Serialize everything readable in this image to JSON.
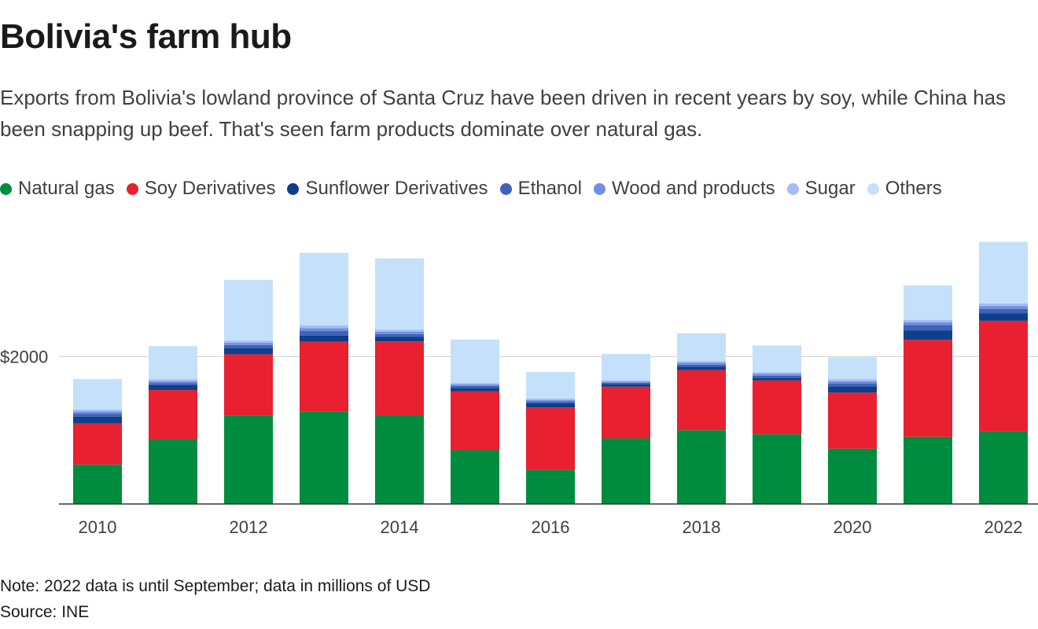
{
  "title": "Bolivia's farm hub",
  "subtitle": "Exports from Bolivia's lowland province of Santa Cruz have been driven in recent years by soy, while China has been snapping up beef. That's seen farm products dominate over natural gas.",
  "note": "Note: 2022 data is until September; data in millions of USD",
  "source": "Source: INE",
  "chart_data": {
    "type": "bar",
    "stacked": true,
    "categories": [
      "2010",
      "2011",
      "2012",
      "2013",
      "2014",
      "2015",
      "2016",
      "2017",
      "2018",
      "2019",
      "2020",
      "2021",
      "2022"
    ],
    "x_tick_labels": [
      "2010",
      "2012",
      "2014",
      "2016",
      "2018",
      "2020",
      "2022"
    ],
    "y_ticks": [
      {
        "value": 2000,
        "label": "$2000"
      }
    ],
    "ylim": [
      0,
      3600
    ],
    "grid": true,
    "legend_position": "top",
    "series": [
      {
        "name": "Natural gas",
        "color": "#008c3f",
        "values": [
          535,
          880,
          1195,
          1250,
          1205,
          730,
          460,
          890,
          1000,
          945,
          750,
          910,
          985
        ]
      },
      {
        "name": "Soy Derivatives",
        "color": "#e8202f",
        "values": [
          555,
          665,
          835,
          950,
          1000,
          800,
          850,
          700,
          815,
          730,
          760,
          1315,
          1500
        ]
      },
      {
        "name": "Sunflower Derivatives",
        "color": "#0e3f88",
        "values": [
          95,
          65,
          85,
          85,
          60,
          45,
          55,
          35,
          45,
          35,
          85,
          130,
          100
        ]
      },
      {
        "name": "Ethanol",
        "color": "#3f63b8",
        "values": [
          40,
          30,
          40,
          60,
          40,
          25,
          25,
          20,
          30,
          30,
          40,
          70,
          60
        ]
      },
      {
        "name": "Wood and products",
        "color": "#6f8fe0",
        "values": [
          30,
          25,
          30,
          40,
          30,
          20,
          20,
          15,
          25,
          25,
          30,
          40,
          40
        ]
      },
      {
        "name": "Sugar",
        "color": "#a3bdf7",
        "values": [
          25,
          25,
          30,
          35,
          30,
          20,
          20,
          15,
          20,
          20,
          25,
          30,
          35
        ]
      },
      {
        "name": "Others",
        "color": "#c5e0fb",
        "values": [
          415,
          450,
          825,
          985,
          965,
          590,
          360,
          360,
          380,
          365,
          300,
          470,
          835
        ]
      }
    ]
  }
}
